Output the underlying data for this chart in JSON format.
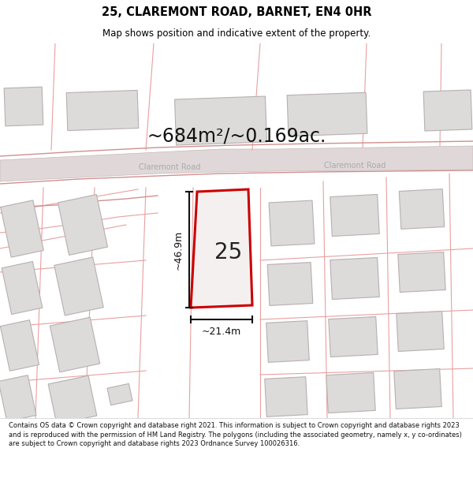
{
  "title": "25, CLAREMONT ROAD, BARNET, EN4 0HR",
  "subtitle": "Map shows position and indicative extent of the property.",
  "area_label": "~684m²/~0.169ac.",
  "number_label": "25",
  "road_label1": "Claremont Road",
  "road_label2": "Claremont Road",
  "dim_width": "~21.4m",
  "dim_height": "~46.9m",
  "footer": "Contains OS data © Crown copyright and database right 2021. This information is subject to Crown copyright and database rights 2023 and is reproduced with the permission of HM Land Registry. The polygons (including the associated geometry, namely x, y co-ordinates) are subject to Crown copyright and database rights 2023 Ordnance Survey 100026316.",
  "map_bg": "#f7f2f2",
  "road_fill": "#e0d8d8",
  "road_edge": "#c8b8b8",
  "building_fill": "#dddada",
  "building_edge": "#b8b0b0",
  "plot_fill": "#f5f0f0",
  "plot_edge": "#cc0000",
  "pink_line": "#e8a0a0",
  "dim_color": "#111111",
  "text_color": "#111111",
  "road_text": "#aaaaaa",
  "area_text": "#111111"
}
